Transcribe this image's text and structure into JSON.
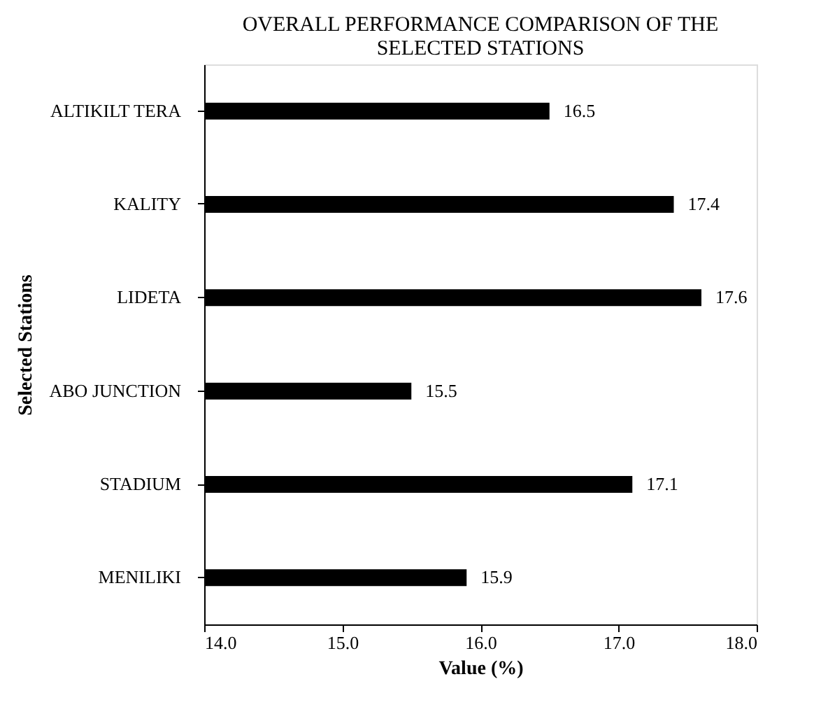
{
  "chart_data": {
    "type": "bar",
    "orientation": "horizontal",
    "title": "OVERALL PERFORMANCE COMPARISON OF THE SELECTED STATIONS",
    "xlabel": "Value (%)",
    "ylabel": "Selected Stations",
    "categories": [
      "ALTIKILT TERA",
      "KALITY",
      "LIDETA",
      "ABO JUNCTION",
      "STADIUM",
      "MENILIKI"
    ],
    "values": [
      16.5,
      17.4,
      17.6,
      15.5,
      17.1,
      15.9
    ],
    "color": "#000000",
    "xlim": [
      14,
      18
    ],
    "xticks": [
      {
        "value": 14,
        "label": "14.0"
      },
      {
        "value": 15,
        "label": "15.0"
      },
      {
        "value": 16,
        "label": "16.0"
      },
      {
        "value": 17,
        "label": "17.0"
      },
      {
        "value": 18,
        "label": "18.0"
      }
    ],
    "data_labels": true,
    "grid": false
  }
}
